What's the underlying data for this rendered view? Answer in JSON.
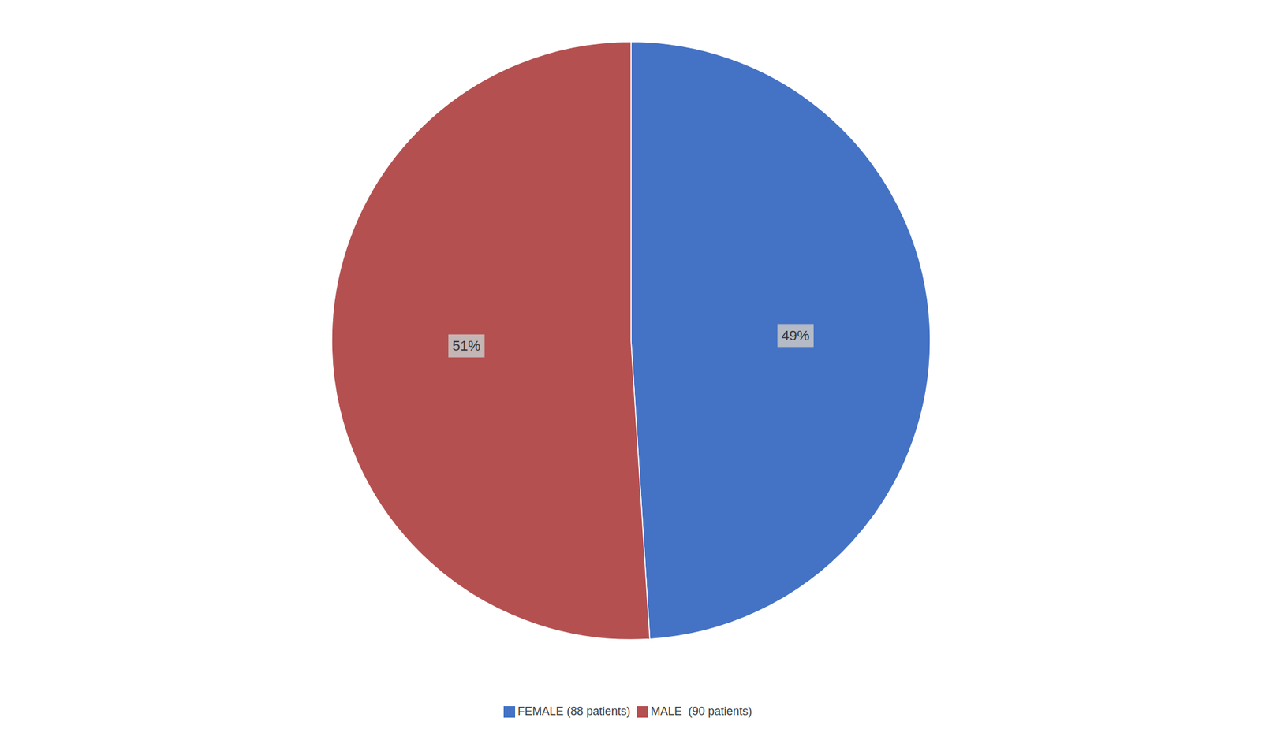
{
  "chart_data": {
    "type": "pie",
    "categories": [
      "FEMALE (88 patients)",
      "MALE  (90 patients)"
    ],
    "values": [
      49,
      51
    ],
    "value_labels": [
      "49%",
      "51%"
    ],
    "colors": [
      "#4472C4",
      "#B55050"
    ],
    "data_labels": true,
    "legend": "bottom"
  }
}
